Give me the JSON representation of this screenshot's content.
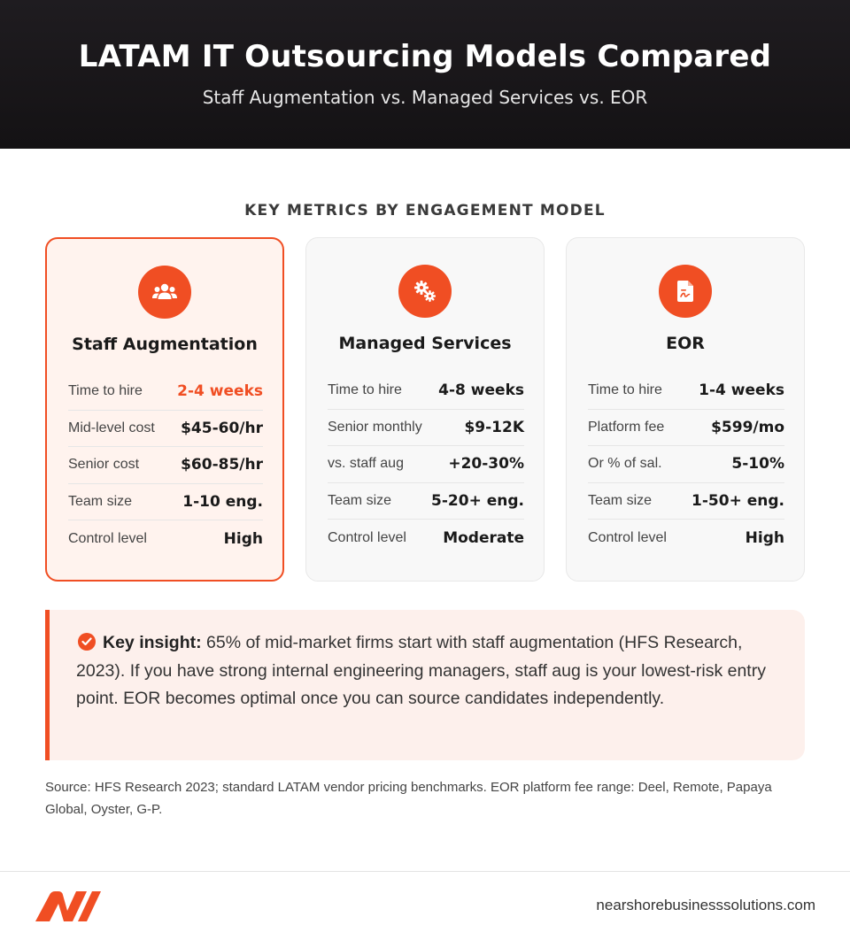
{
  "header": {
    "title": "LATAM IT Outsourcing Models Compared",
    "subtitle": "Staff Augmentation vs. Managed Services vs. EOR"
  },
  "section_heading": "KEY METRICS BY ENGAGEMENT MODEL",
  "colors": {
    "accent": "#f04e23",
    "header_bg": "#1a171a",
    "highlight_bg": "#fff3ee",
    "insight_bg": "#fdf0ec"
  },
  "cards": [
    {
      "icon": "people-icon",
      "title": "Staff Augmentation",
      "highlighted": true,
      "rows": [
        {
          "label": "Time to hire",
          "value": "2-4 weeks"
        },
        {
          "label": "Mid-level cost",
          "value": "$45-60/hr"
        },
        {
          "label": "Senior cost",
          "value": "$60-85/hr"
        },
        {
          "label": "Team size",
          "value": "1-10 eng."
        },
        {
          "label": "Control level",
          "value": "High"
        }
      ]
    },
    {
      "icon": "gears-icon",
      "title": "Managed Services",
      "highlighted": false,
      "rows": [
        {
          "label": "Time to hire",
          "value": "4-8 weeks"
        },
        {
          "label": "Senior monthly",
          "value": "$9-12K"
        },
        {
          "label": "vs. staff aug",
          "value": "+20-30%"
        },
        {
          "label": "Team size",
          "value": "5-20+ eng."
        },
        {
          "label": "Control level",
          "value": "Moderate"
        }
      ]
    },
    {
      "icon": "document-icon",
      "title": "EOR",
      "highlighted": false,
      "rows": [
        {
          "label": "Time to hire",
          "value": "1-4 weeks"
        },
        {
          "label": "Platform fee",
          "value": "$599/mo"
        },
        {
          "label": "Or % of sal.",
          "value": "5-10%"
        },
        {
          "label": "Team size",
          "value": "1-50+ eng."
        },
        {
          "label": "Control level",
          "value": "High"
        }
      ]
    }
  ],
  "insight": {
    "label": "Key insight:",
    "text": " 65% of mid-market firms start with staff augmentation (HFS Research, 2023). If you have strong internal engineering managers, staff aug is your lowest-risk entry point. EOR becomes optimal once you can source candidates independently."
  },
  "source": "Source: HFS Research 2023; standard LATAM vendor pricing benchmarks. EOR platform fee range: Deel, Remote, Papaya Global, Oyster, G-P.",
  "footer": {
    "url": "nearshorebusinesssolutions.com"
  }
}
